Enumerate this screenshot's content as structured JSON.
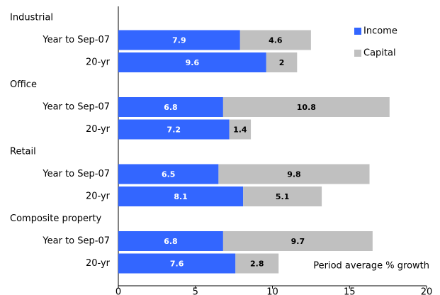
{
  "chart_data": {
    "type": "stacked_barh",
    "categories": [
      "Industrial",
      "Year to Sep-07",
      "20-yr",
      "Office",
      "Year to Sep-07",
      "20-yr",
      "Retail",
      "Year to Sep-07",
      "20-yr",
      "Composite property",
      "Year to Sep-07",
      "20-yr"
    ],
    "series": [
      {
        "name": "Income",
        "color": "#3366ff",
        "values": [
          null,
          7.9,
          9.6,
          null,
          6.8,
          7.2,
          null,
          6.5,
          8.1,
          null,
          6.8,
          7.6
        ]
      },
      {
        "name": "Capital",
        "color": "#c0c0c0",
        "values": [
          null,
          4.6,
          2,
          null,
          10.8,
          1.4,
          null,
          9.8,
          5.1,
          null,
          9.7,
          2.8
        ]
      }
    ],
    "xlim": [
      0,
      20
    ],
    "xticks": [
      0,
      5,
      10,
      15,
      20
    ],
    "annotation": "Period average % growth",
    "legend": "upper right"
  }
}
